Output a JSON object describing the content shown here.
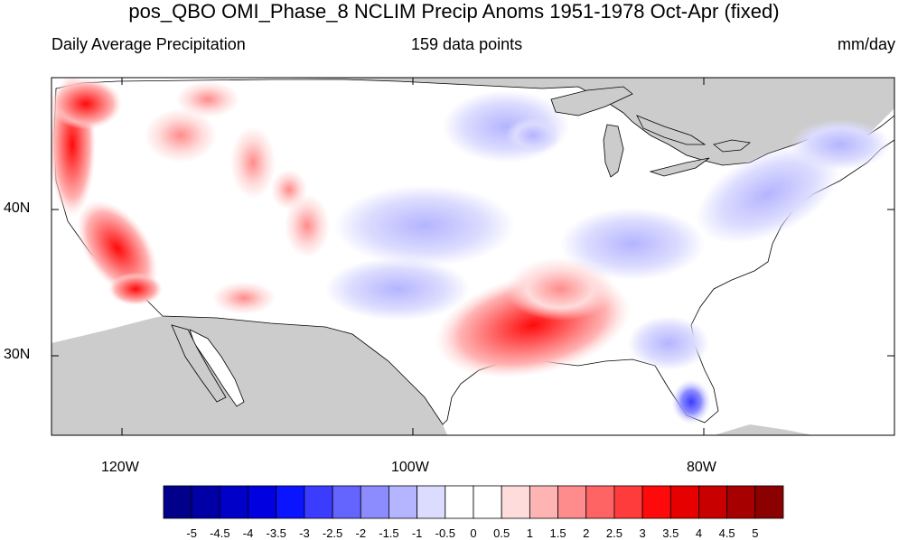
{
  "header": {
    "title": "pos_QBO OMI_Phase_8 NCLIM Precip Anoms 1951-1978 Oct-Apr (fixed)",
    "left_label": "Daily Average Precipitation",
    "center_label": "159 data points",
    "right_label": "mm/day"
  },
  "axes": {
    "y_ticks": [
      "40N",
      "30N"
    ],
    "x_ticks": [
      "120W",
      "100W",
      "80W"
    ]
  },
  "colorbar": {
    "labels": [
      "-5",
      "-4.5",
      "-4",
      "-3.5",
      "-3",
      "-2.5",
      "-2",
      "-1.5",
      "-1",
      "-0.5",
      "0",
      "0.5",
      "1",
      "1.5",
      "2",
      "2.5",
      "3",
      "3.5",
      "4",
      "4.5",
      "5"
    ],
    "colors": [
      "#00008b",
      "#0000a6",
      "#0000c8",
      "#0000e0",
      "#0a14ff",
      "#3c3cff",
      "#6464ff",
      "#8c8cff",
      "#b4b4ff",
      "#dcdcff",
      "#ffffff",
      "#ffffff",
      "#ffdcdc",
      "#ffb4b4",
      "#ff8c8c",
      "#ff6464",
      "#ff3c3c",
      "#ff0a0a",
      "#e60000",
      "#c80000",
      "#a60000",
      "#8b0000"
    ]
  },
  "map": {
    "land_color": "#ffffff",
    "masked_color": "#cccccc",
    "ocean_color": "#ffffff"
  }
}
